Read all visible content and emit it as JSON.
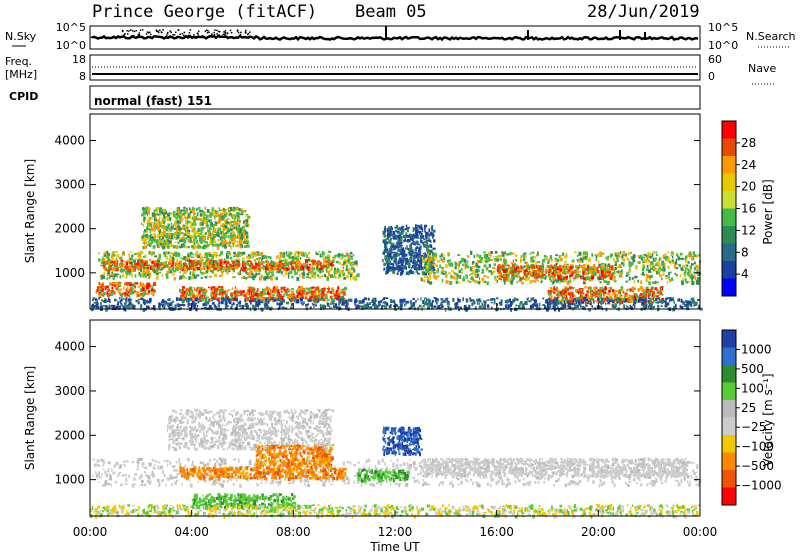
{
  "header": {
    "station": "Prince George (fitACF)",
    "beam": "Beam 05",
    "date": "28/Jun/2019"
  },
  "nsky_panel": {
    "left_label": "N.Sky",
    "right_label": "N.Search",
    "left_ticks": [
      "10^5",
      "10^0"
    ],
    "right_ticks": [
      "10^5",
      "10^0"
    ]
  },
  "freq_panel": {
    "left_label": "Freq.",
    "left_unit": "[MHz]",
    "right_label": "Nave",
    "left_ticks": [
      "18",
      "8"
    ],
    "right_ticks": [
      "60",
      "0"
    ]
  },
  "cpid": {
    "label": "CPID",
    "mode": "normal (fast) 151"
  },
  "chart_data": [
    {
      "type": "heatmap",
      "name": "power",
      "ylabel": "Slant Range [km]",
      "yticks": [
        "4000",
        "3000",
        "2000",
        "1000"
      ],
      "ylim": [
        180,
        4600
      ],
      "colorbar_label": "Power [dB]",
      "colorbar_ticks": [
        "28",
        "24",
        "20",
        "16",
        "12",
        "8",
        "4"
      ],
      "colorbar_colors": [
        "#ff0000",
        "#e84a00",
        "#ff9900",
        "#e8c800",
        "#ccdd33",
        "#44bb44",
        "#2e8b57",
        "#2a6a88",
        "#1b3fa0",
        "#0000ff"
      ],
      "regions": [
        {
          "t": [
            0.3,
            10.5
          ],
          "r": [
            900,
            1500
          ],
          "level": "med"
        },
        {
          "t": [
            2.0,
            6.2
          ],
          "r": [
            1600,
            2500
          ],
          "level": "med"
        },
        {
          "t": [
            0.5,
            9.5
          ],
          "r": [
            1100,
            1300
          ],
          "level": "high"
        },
        {
          "t": [
            0.2,
            2.5
          ],
          "r": [
            500,
            800
          ],
          "level": "high"
        },
        {
          "t": [
            3.5,
            10.0
          ],
          "r": [
            400,
            700
          ],
          "level": "high"
        },
        {
          "t": [
            11.5,
            13.5
          ],
          "r": [
            1000,
            2100
          ],
          "level": "low"
        },
        {
          "t": [
            13.0,
            24.0
          ],
          "r": [
            800,
            1500
          ],
          "level": "med"
        },
        {
          "t": [
            16.0,
            20.5
          ],
          "r": [
            900,
            1200
          ],
          "level": "high"
        },
        {
          "t": [
            18.0,
            22.5
          ],
          "r": [
            350,
            700
          ],
          "level": "high"
        },
        {
          "t": [
            0.0,
            24.0
          ],
          "r": [
            200,
            450
          ],
          "level": "low"
        }
      ]
    },
    {
      "type": "heatmap",
      "name": "velocity",
      "ylabel": "Slant Range [km]",
      "yticks": [
        "4000",
        "3000",
        "2000",
        "1000"
      ],
      "ylim": [
        180,
        4600
      ],
      "colorbar_label": "Velocity [m s⁻¹]",
      "colorbar_ticks": [
        "1000",
        "500",
        "100",
        "25",
        "−25",
        "−100",
        "−500",
        "−1000"
      ],
      "colorbar_colors": [
        "#1e3fa8",
        "#2e6fd0",
        "#2e8b2e",
        "#55cc33",
        "#bbbbbb",
        "#cccccc",
        "#f0c800",
        "#ff8800",
        "#ee5500",
        "#ff0000"
      ],
      "regions": [
        {
          "t": [
            0.0,
            24.0
          ],
          "r": [
            900,
            1500
          ],
          "vel": "grey"
        },
        {
          "t": [
            3.0,
            9.5
          ],
          "r": [
            1700,
            2600
          ],
          "vel": "grey"
        },
        {
          "t": [
            3.5,
            10.0
          ],
          "r": [
            1050,
            1300
          ],
          "vel": "neg"
        },
        {
          "t": [
            6.5,
            9.5
          ],
          "r": [
            1300,
            1800
          ],
          "vel": "neg"
        },
        {
          "t": [
            10.5,
            12.5
          ],
          "r": [
            1000,
            1250
          ],
          "vel": "pos"
        },
        {
          "t": [
            11.5,
            13.0
          ],
          "r": [
            1600,
            2200
          ],
          "vel": "pos_high"
        },
        {
          "t": [
            13.0,
            23.5
          ],
          "r": [
            1100,
            1500
          ],
          "vel": "grey"
        },
        {
          "t": [
            4.0,
            8.0
          ],
          "r": [
            400,
            700
          ],
          "vel": "pos"
        },
        {
          "t": [
            0.0,
            24.0
          ],
          "r": [
            200,
            450
          ],
          "vel": "neg_low"
        }
      ]
    }
  ],
  "time_axis": {
    "label": "Time UT",
    "ticks": [
      "00:00",
      "04:00",
      "08:00",
      "12:00",
      "16:00",
      "20:00",
      "00:00"
    ]
  }
}
